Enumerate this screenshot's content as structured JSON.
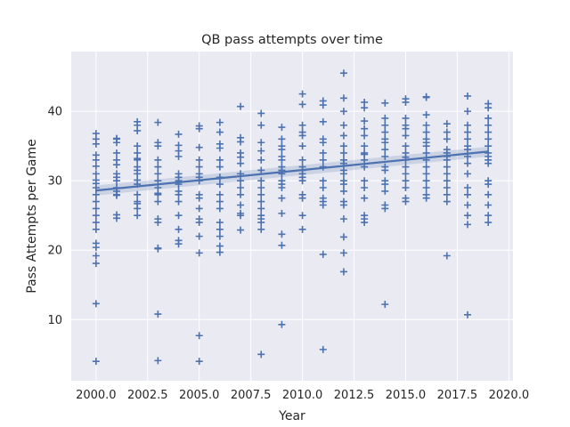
{
  "chart_data": {
    "type": "scatter",
    "title": "QB pass attempts over time",
    "xlabel": "Year",
    "ylabel": "Pass Attempts per Game",
    "xlim": [
      1998.8,
      2020.2
    ],
    "ylim": [
      1.2,
      48.6
    ],
    "xticks": [
      "2000.0",
      "2002.5",
      "2005.0",
      "2007.5",
      "2010.0",
      "2012.5",
      "2015.0",
      "2017.5",
      "2020.0"
    ],
    "yticks": [
      "10",
      "20",
      "30",
      "40"
    ],
    "grid": true,
    "marker": "plus",
    "colors": {
      "points": "#4c72b0",
      "line": "#4c72b0",
      "band": "#4c72b0",
      "background": "#eaeaf2",
      "grid": "#ffffff"
    },
    "series": [
      {
        "x": [
          2000,
          2000,
          2000,
          2000,
          2000,
          2000,
          2000,
          2000,
          2000,
          2000,
          2000,
          2000,
          2000,
          2000,
          2000,
          2000,
          2000,
          2000,
          2000,
          2000,
          2000,
          2000,
          2001,
          2001,
          2001,
          2001,
          2001,
          2001,
          2001,
          2001,
          2001,
          2001,
          2001,
          2001,
          2001,
          2001,
          2001,
          2002,
          2002,
          2002,
          2002,
          2002,
          2002,
          2002,
          2002,
          2002,
          2002,
          2002,
          2002,
          2002,
          2002,
          2002,
          2002,
          2002,
          2003,
          2003,
          2003,
          2003,
          2003,
          2003,
          2003,
          2003,
          2003,
          2003,
          2003,
          2003,
          2003,
          2003,
          2003,
          2003,
          2003,
          2004,
          2004,
          2004,
          2004,
          2004,
          2004,
          2004,
          2004,
          2004,
          2004,
          2004,
          2004,
          2004,
          2004,
          2004,
          2005,
          2005,
          2005,
          2005,
          2005,
          2005,
          2005,
          2005,
          2005,
          2005,
          2005,
          2005,
          2005,
          2005,
          2005,
          2005,
          2005,
          2006,
          2006,
          2006,
          2006,
          2006,
          2006,
          2006,
          2006,
          2006,
          2006,
          2006,
          2006,
          2006,
          2006,
          2006,
          2006,
          2007,
          2007,
          2007,
          2007,
          2007,
          2007,
          2007,
          2007,
          2007,
          2007,
          2007,
          2007,
          2007,
          2007,
          2008,
          2008,
          2008,
          2008,
          2008,
          2008,
          2008,
          2008,
          2008,
          2008,
          2008,
          2008,
          2008,
          2008,
          2008,
          2008,
          2009,
          2009,
          2009,
          2009,
          2009,
          2009,
          2009,
          2009,
          2009,
          2009,
          2009,
          2009,
          2009,
          2009,
          2009,
          2009,
          2009,
          2010,
          2010,
          2010,
          2010,
          2010,
          2010,
          2010,
          2010,
          2010,
          2010,
          2010,
          2010,
          2010,
          2010,
          2010,
          2010,
          2011,
          2011,
          2011,
          2011,
          2011,
          2011,
          2011,
          2011,
          2011,
          2011,
          2011,
          2011,
          2011,
          2011,
          2011,
          2012,
          2012,
          2012,
          2012,
          2012,
          2012,
          2012,
          2012,
          2012,
          2012,
          2012,
          2012,
          2012,
          2012,
          2012,
          2012,
          2012,
          2012,
          2012,
          2012,
          2013,
          2013,
          2013,
          2013,
          2013,
          2013,
          2013,
          2013,
          2013,
          2013,
          2013,
          2013,
          2013,
          2013,
          2013,
          2013,
          2014,
          2014,
          2014,
          2014,
          2014,
          2014,
          2014,
          2014,
          2014,
          2014,
          2014,
          2014,
          2014,
          2014,
          2014,
          2014,
          2015,
          2015,
          2015,
          2015,
          2015,
          2015,
          2015,
          2015,
          2015,
          2015,
          2015,
          2015,
          2015,
          2015,
          2015,
          2015,
          2016,
          2016,
          2016,
          2016,
          2016,
          2016,
          2016,
          2016,
          2016,
          2016,
          2016,
          2016,
          2016,
          2016,
          2016,
          2016,
          2017,
          2017,
          2017,
          2017,
          2017,
          2017,
          2017,
          2017,
          2017,
          2017,
          2017,
          2017,
          2017,
          2017,
          2018,
          2018,
          2018,
          2018,
          2018,
          2018,
          2018,
          2018,
          2018,
          2018,
          2018,
          2018,
          2018,
          2018,
          2018,
          2018,
          2019,
          2019,
          2019,
          2019,
          2019,
          2019,
          2019,
          2019,
          2019,
          2019,
          2019,
          2019,
          2019,
          2019,
          2019,
          2019,
          2019
        ],
        "y": [
          36.8,
          36.0,
          35.3,
          33.7,
          33.0,
          31.0,
          29.6,
          28.0,
          27.0,
          26.0,
          25.0,
          24.0,
          23.0,
          21.0,
          20.4,
          19.2,
          18.1,
          12.3,
          4.0,
          30.1,
          32.1,
          29.0,
          36.1,
          35.5,
          34.0,
          33.0,
          32.3,
          31.0,
          30.0,
          29.0,
          28.5,
          27.9,
          25.1,
          24.6,
          36.0,
          30.5,
          28.0,
          38.5,
          38.0,
          37.2,
          35.0,
          34.0,
          33.2,
          33.0,
          31.5,
          31.0,
          29.5,
          28.0,
          27.0,
          26.7,
          26.0,
          25.0,
          30.1,
          32.0,
          38.4,
          35.5,
          35.0,
          33.0,
          32.0,
          31.0,
          30.0,
          29.0,
          28.2,
          28.0,
          27.0,
          24.5,
          24.0,
          20.3,
          20.2,
          10.8,
          4.1,
          36.7,
          35.1,
          34.3,
          33.5,
          31.0,
          30.5,
          30.0,
          29.5,
          28.5,
          28.0,
          27.0,
          25.0,
          23.0,
          21.4,
          20.9,
          37.9,
          37.5,
          34.8,
          33.0,
          32.0,
          31.0,
          30.5,
          30.0,
          28.0,
          27.5,
          26.0,
          24.5,
          24.0,
          22.0,
          19.6,
          7.7,
          4.0,
          38.4,
          37.0,
          35.3,
          34.7,
          33.0,
          32.0,
          30.5,
          29.5,
          28.0,
          27.0,
          26.0,
          24.0,
          23.0,
          22.0,
          20.6,
          19.7,
          40.7,
          36.2,
          35.6,
          33.4,
          32.5,
          31.0,
          30.0,
          29.0,
          28.0,
          26.5,
          25.3,
          25.0,
          22.9,
          34.0,
          39.7,
          38.0,
          35.5,
          34.3,
          33.0,
          31.5,
          30.0,
          29.0,
          28.0,
          27.0,
          26.0,
          25.0,
          24.5,
          24.0,
          23.0,
          5.0,
          37.7,
          36.0,
          35.0,
          34.5,
          33.5,
          33.0,
          32.0,
          31.5,
          31.0,
          30.0,
          29.5,
          29.0,
          27.5,
          25.3,
          22.3,
          20.7,
          9.3,
          42.5,
          41.0,
          38.0,
          36.5,
          35.0,
          33.0,
          32.0,
          31.5,
          31.0,
          30.5,
          30.0,
          28.0,
          27.5,
          25.0,
          23.0,
          37.0,
          41.5,
          40.9,
          38.5,
          36.0,
          35.5,
          34.0,
          33.0,
          32.0,
          30.0,
          29.0,
          27.5,
          27.0,
          26.5,
          19.4,
          5.7,
          45.5,
          41.9,
          40.0,
          38.0,
          36.5,
          35.0,
          34.0,
          33.0,
          32.5,
          31.5,
          31.0,
          29.5,
          28.5,
          27.0,
          26.5,
          24.5,
          21.9,
          19.6,
          16.9,
          30.0,
          41.3,
          40.5,
          38.6,
          37.5,
          36.5,
          35.0,
          34.0,
          33.0,
          32.0,
          30.0,
          29.0,
          27.5,
          25.0,
          24.5,
          24.0,
          33.8,
          41.2,
          39.0,
          38.0,
          37.0,
          35.5,
          34.5,
          33.5,
          32.0,
          31.5,
          30.0,
          29.5,
          28.5,
          26.5,
          26.0,
          12.2,
          36.0,
          41.8,
          41.3,
          39.0,
          37.5,
          36.5,
          35.0,
          34.0,
          33.0,
          32.0,
          31.0,
          30.0,
          29.0,
          27.5,
          27.0,
          38.0,
          33.4,
          42.1,
          42.0,
          39.5,
          38.0,
          37.0,
          36.0,
          35.0,
          34.0,
          33.0,
          32.0,
          31.0,
          30.0,
          29.0,
          28.0,
          27.5,
          35.5,
          38.2,
          37.0,
          36.0,
          34.5,
          34.0,
          33.5,
          33.0,
          31.0,
          30.0,
          29.0,
          28.0,
          27.0,
          19.2,
          32.0,
          42.2,
          40.0,
          38.0,
          37.0,
          36.0,
          35.0,
          34.5,
          33.5,
          32.5,
          31.0,
          29.0,
          28.0,
          26.5,
          25.0,
          23.7,
          10.7,
          41.1,
          40.5,
          39.0,
          38.0,
          37.0,
          36.0,
          35.0,
          34.0,
          33.5,
          33.0,
          32.5,
          30.0,
          29.5,
          28.0,
          26.5,
          25.0,
          24.0
        ]
      }
    ],
    "regression": {
      "x": [
        2000,
        2019
      ],
      "y": [
        28.6,
        34.2
      ],
      "ci_halfwidth": 0.55
    }
  }
}
